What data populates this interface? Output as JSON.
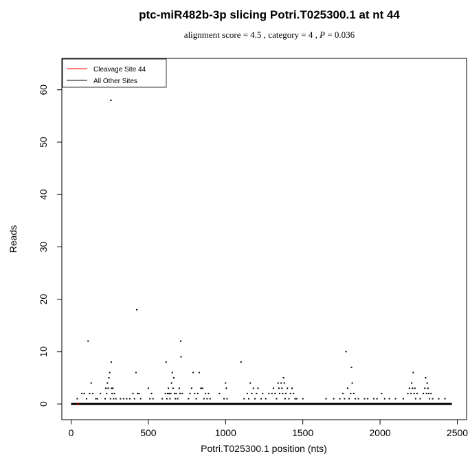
{
  "chart_data": {
    "type": "scatter",
    "title": "ptc-miR482b-3p slicing Potri.T025300.1 at nt 44",
    "subtitle": {
      "pre": "alignment score = 4.5 , category = 4 , ",
      "p_label": "P",
      "post": " = 0.036"
    },
    "xlabel": "Potri.T025300.1 position (nts)",
    "ylabel": "Reads",
    "xlim": [
      -60,
      2560
    ],
    "ylim": [
      -3,
      66
    ],
    "xticks": [
      0,
      500,
      1000,
      1500,
      2000,
      2500
    ],
    "yticks": [
      0,
      10,
      20,
      30,
      40,
      50,
      60
    ],
    "legend": {
      "position": "top-left",
      "entries": [
        {
          "label": "Cleavage Site 44",
          "color": "#ff0000"
        },
        {
          "label": "All Other Sites",
          "color": "#000000"
        }
      ]
    },
    "baseline": {
      "x_start": 0,
      "x_end": 2465,
      "y": 0,
      "color": "#000000"
    },
    "cleavage_site": {
      "x": 44,
      "y": 0,
      "color": "#ff0000"
    },
    "points": [
      [
        40,
        1
      ],
      [
        70,
        2
      ],
      [
        85,
        2
      ],
      [
        100,
        1
      ],
      [
        110,
        12
      ],
      [
        120,
        2
      ],
      [
        130,
        4
      ],
      [
        140,
        2
      ],
      [
        160,
        1
      ],
      [
        170,
        1
      ],
      [
        190,
        2
      ],
      [
        220,
        1
      ],
      [
        225,
        3
      ],
      [
        230,
        2
      ],
      [
        235,
        4
      ],
      [
        240,
        3
      ],
      [
        245,
        5
      ],
      [
        250,
        6
      ],
      [
        255,
        1
      ],
      [
        258,
        58
      ],
      [
        260,
        8
      ],
      [
        262,
        3
      ],
      [
        265,
        2
      ],
      [
        270,
        3
      ],
      [
        275,
        1
      ],
      [
        280,
        2
      ],
      [
        290,
        1
      ],
      [
        320,
        1
      ],
      [
        340,
        1
      ],
      [
        360,
        1
      ],
      [
        380,
        1
      ],
      [
        400,
        2
      ],
      [
        410,
        1
      ],
      [
        420,
        6
      ],
      [
        425,
        18
      ],
      [
        430,
        2
      ],
      [
        440,
        2
      ],
      [
        450,
        1
      ],
      [
        500,
        3
      ],
      [
        510,
        1
      ],
      [
        520,
        2
      ],
      [
        530,
        1
      ],
      [
        590,
        1
      ],
      [
        610,
        2
      ],
      [
        615,
        8
      ],
      [
        620,
        1
      ],
      [
        625,
        2
      ],
      [
        630,
        3
      ],
      [
        635,
        2
      ],
      [
        640,
        1
      ],
      [
        645,
        2
      ],
      [
        650,
        4
      ],
      [
        655,
        6
      ],
      [
        660,
        3
      ],
      [
        665,
        5
      ],
      [
        670,
        2
      ],
      [
        675,
        1
      ],
      [
        680,
        2
      ],
      [
        690,
        1
      ],
      [
        700,
        3
      ],
      [
        705,
        2
      ],
      [
        710,
        12
      ],
      [
        712,
        9
      ],
      [
        720,
        2
      ],
      [
        760,
        1
      ],
      [
        770,
        2
      ],
      [
        780,
        3
      ],
      [
        790,
        6
      ],
      [
        800,
        2
      ],
      [
        810,
        1
      ],
      [
        820,
        2
      ],
      [
        830,
        6
      ],
      [
        840,
        3
      ],
      [
        850,
        3
      ],
      [
        860,
        1
      ],
      [
        870,
        2
      ],
      [
        880,
        1
      ],
      [
        890,
        2
      ],
      [
        900,
        1
      ],
      [
        960,
        2
      ],
      [
        990,
        1
      ],
      [
        1000,
        4
      ],
      [
        1005,
        3
      ],
      [
        1010,
        1
      ],
      [
        1100,
        8
      ],
      [
        1120,
        1
      ],
      [
        1140,
        2
      ],
      [
        1150,
        1
      ],
      [
        1160,
        4
      ],
      [
        1170,
        2
      ],
      [
        1180,
        3
      ],
      [
        1190,
        1
      ],
      [
        1200,
        2
      ],
      [
        1210,
        3
      ],
      [
        1230,
        1
      ],
      [
        1240,
        2
      ],
      [
        1260,
        1
      ],
      [
        1280,
        2
      ],
      [
        1300,
        2
      ],
      [
        1310,
        3
      ],
      [
        1320,
        2
      ],
      [
        1330,
        1
      ],
      [
        1340,
        4
      ],
      [
        1345,
        3
      ],
      [
        1350,
        2
      ],
      [
        1360,
        4
      ],
      [
        1365,
        3
      ],
      [
        1370,
        2
      ],
      [
        1375,
        5
      ],
      [
        1380,
        4
      ],
      [
        1385,
        1
      ],
      [
        1390,
        2
      ],
      [
        1400,
        3
      ],
      [
        1410,
        1
      ],
      [
        1420,
        2
      ],
      [
        1430,
        3
      ],
      [
        1440,
        2
      ],
      [
        1450,
        1
      ],
      [
        1460,
        1
      ],
      [
        1500,
        1
      ],
      [
        1650,
        1
      ],
      [
        1700,
        1
      ],
      [
        1740,
        1
      ],
      [
        1760,
        2
      ],
      [
        1770,
        1
      ],
      [
        1780,
        10
      ],
      [
        1790,
        3
      ],
      [
        1800,
        1
      ],
      [
        1810,
        2
      ],
      [
        1815,
        7
      ],
      [
        1820,
        4
      ],
      [
        1830,
        2
      ],
      [
        1840,
        1
      ],
      [
        1860,
        1
      ],
      [
        1900,
        1
      ],
      [
        1920,
        1
      ],
      [
        1960,
        1
      ],
      [
        1980,
        1
      ],
      [
        2010,
        2
      ],
      [
        2030,
        1
      ],
      [
        2060,
        1
      ],
      [
        2100,
        1
      ],
      [
        2150,
        1
      ],
      [
        2180,
        2
      ],
      [
        2190,
        3
      ],
      [
        2200,
        2
      ],
      [
        2205,
        4
      ],
      [
        2210,
        3
      ],
      [
        2215,
        6
      ],
      [
        2220,
        2
      ],
      [
        2225,
        3
      ],
      [
        2230,
        1
      ],
      [
        2240,
        2
      ],
      [
        2260,
        1
      ],
      [
        2280,
        2
      ],
      [
        2290,
        3
      ],
      [
        2295,
        5
      ],
      [
        2300,
        2
      ],
      [
        2305,
        4
      ],
      [
        2310,
        3
      ],
      [
        2315,
        2
      ],
      [
        2320,
        1
      ],
      [
        2330,
        2
      ],
      [
        2340,
        1
      ],
      [
        2380,
        1
      ],
      [
        2420,
        1
      ]
    ]
  }
}
